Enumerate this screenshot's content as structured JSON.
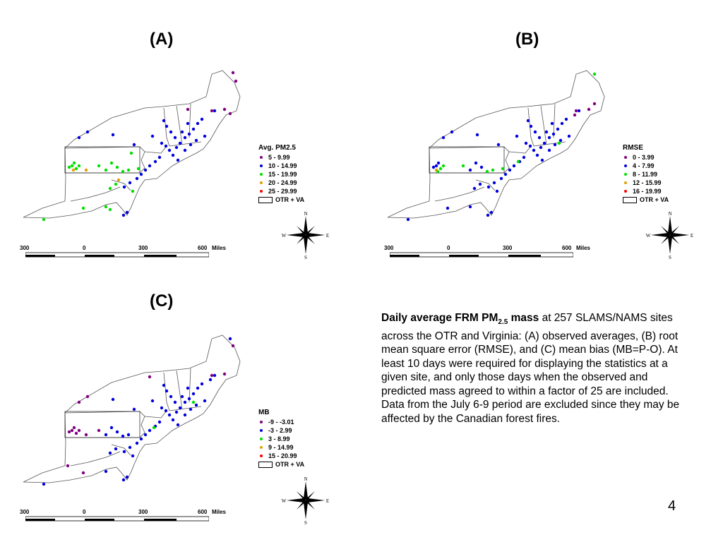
{
  "panels": [
    {
      "label": "(A)",
      "legend": {
        "title": "Avg. PM2.5",
        "items": [
          {
            "label": "5 - 9.99",
            "color": "#800080"
          },
          {
            "label": "10 - 14.99",
            "color": "#0000e0"
          },
          {
            "label": "15 - 19.99",
            "color": "#00e000"
          },
          {
            "label": "20 - 24.99",
            "color": "#e0a000"
          },
          {
            "label": "25 - 29.99",
            "color": "#ff0000"
          }
        ],
        "box_label": "OTR + VA"
      }
    },
    {
      "label": "(B)",
      "legend": {
        "title": "RMSE",
        "items": [
          {
            "label": "0 - 3.99",
            "color": "#800080"
          },
          {
            "label": "4 - 7.99",
            "color": "#0000e0"
          },
          {
            "label": "8 - 11.99",
            "color": "#00e000"
          },
          {
            "label": "12 - 15.99",
            "color": "#e0a000"
          },
          {
            "label": "16 - 19.99",
            "color": "#ff0000"
          }
        ],
        "box_label": "OTR + VA"
      }
    },
    {
      "label": "(C)",
      "legend": {
        "title": "MB",
        "items": [
          {
            "label": "-9 - -3.01",
            "color": "#800080"
          },
          {
            "label": "-3 - 2.99",
            "color": "#0000e0"
          },
          {
            "label": "3 - 8.99",
            "color": "#00e000"
          },
          {
            "label": "9 - 14.99",
            "color": "#e0a000"
          },
          {
            "label": "15 - 20.99",
            "color": "#ff0000"
          }
        ],
        "box_label": "OTR + VA"
      }
    }
  ],
  "compass": {
    "n": "N",
    "s": "S",
    "e": "E",
    "w": "W"
  },
  "scale": {
    "ticks": [
      "300",
      "0",
      "300",
      "600"
    ],
    "unit": "Miles"
  },
  "caption": {
    "bold_main": "Daily average FRM PM",
    "bold_sub": "2.5",
    "bold_tail": " mass",
    "text": " at 257 SLAMS/NAMS sites across the OTR and Virginia: (A) observed averages, (B) root mean square error (RMSE), and (C) mean bias (MB=P-O).  At least 10 days were required for displaying the statistics at a given site, and only those days when the observed and predicted mass agreed to within a factor of 25 are included.  Data from the July 6-9 period are excluded since they may be affected by the Canadian forest fires."
  },
  "slide_number": "4"
}
